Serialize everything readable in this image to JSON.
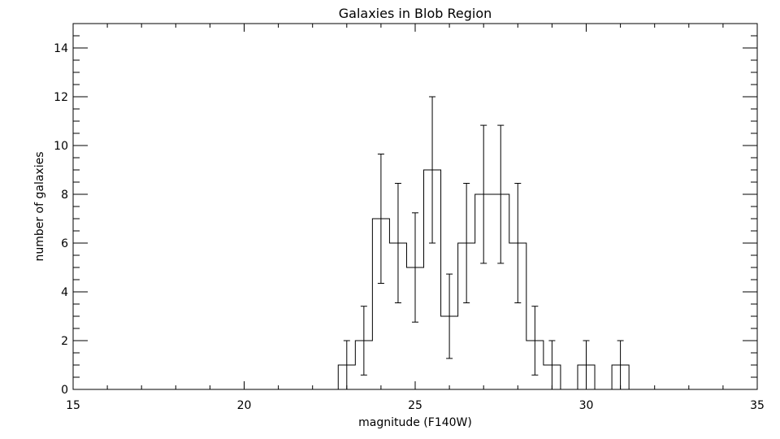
{
  "chart_data": {
    "type": "histogram",
    "title": "Galaxies in Blob Region",
    "xlabel": "magnitude (F140W)",
    "ylabel": "number of galaxies",
    "xlim": [
      15,
      35
    ],
    "ylim": [
      0,
      15
    ],
    "x_ticks": [
      15,
      20,
      25,
      30,
      35
    ],
    "y_ticks": [
      0,
      2,
      4,
      6,
      8,
      10,
      12,
      14
    ],
    "x_minor_step": 1,
    "y_minor_step": 0.5,
    "bin_width": 0.5,
    "bins": [
      {
        "center": 23.0,
        "count": 1,
        "err_low": 0.0,
        "err_high": 2.0
      },
      {
        "center": 23.5,
        "count": 2,
        "err_low": 0.59,
        "err_high": 3.41
      },
      {
        "center": 24.0,
        "count": 7,
        "err_low": 4.35,
        "err_high": 9.65
      },
      {
        "center": 24.5,
        "count": 6,
        "err_low": 3.55,
        "err_high": 8.45
      },
      {
        "center": 25.0,
        "count": 5,
        "err_low": 2.76,
        "err_high": 7.24
      },
      {
        "center": 25.5,
        "count": 9,
        "err_low": 6.0,
        "err_high": 12.0
      },
      {
        "center": 26.0,
        "count": 3,
        "err_low": 1.27,
        "err_high": 4.73
      },
      {
        "center": 26.5,
        "count": 6,
        "err_low": 3.55,
        "err_high": 8.45
      },
      {
        "center": 27.0,
        "count": 8,
        "err_low": 5.17,
        "err_high": 10.83
      },
      {
        "center": 27.5,
        "count": 8,
        "err_low": 5.17,
        "err_high": 10.83
      },
      {
        "center": 28.0,
        "count": 6,
        "err_low": 3.55,
        "err_high": 8.45
      },
      {
        "center": 28.5,
        "count": 2,
        "err_low": 0.59,
        "err_high": 3.41
      },
      {
        "center": 29.0,
        "count": 1,
        "err_low": 0.0,
        "err_high": 2.0
      },
      {
        "center": 30.0,
        "count": 1,
        "err_low": 0.0,
        "err_high": 2.0
      },
      {
        "center": 31.0,
        "count": 1,
        "err_low": 0.0,
        "err_high": 2.0
      }
    ]
  }
}
